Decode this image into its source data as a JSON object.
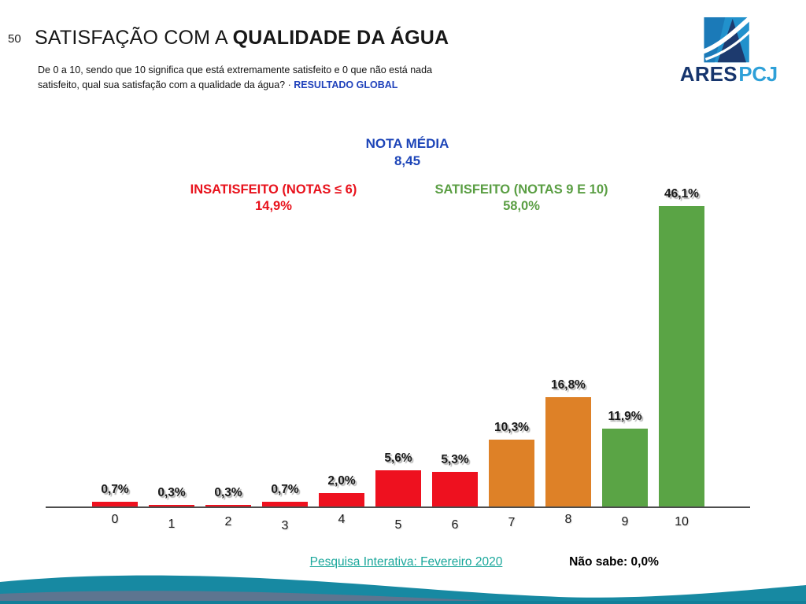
{
  "slide": {
    "number": "50"
  },
  "header": {
    "title_regular": "SATISFAÇÃO COM A ",
    "title_bold": "QUALIDADE DA ÁGUA",
    "subtitle_line1": "De 0 a 10, sendo que 10 significa que está extremamente satisfeito e 0 que não está nada",
    "subtitle_line2": "satisfeito, qual sua satisfação com a qualidade da água? ·",
    "subtitle_highlight": "RESULTADO GLOBAL"
  },
  "logo": {
    "text_dark": "ARES",
    "text_light": "PCJ"
  },
  "annotations": {
    "nota_media_label": "NOTA MÉDIA",
    "nota_media_value": "8,45",
    "insatisfeito_label": "INSATISFEITO (NOTAS ≤ 6)",
    "insatisfeito_value": "14,9%",
    "satisfeito_label": "SATISFEITO (NOTAS 9 E 10)",
    "satisfeito_value": "58,0%"
  },
  "chart_data": {
    "type": "bar",
    "title": "SATISFAÇÃO COM A QUALIDADE DA ÁGUA — RESULTADO GLOBAL",
    "categories": [
      "0",
      "1",
      "2",
      "3",
      "4",
      "5",
      "6",
      "7",
      "8",
      "9",
      "10"
    ],
    "values": [
      0.7,
      0.3,
      0.3,
      0.7,
      2.0,
      5.6,
      5.3,
      10.3,
      16.8,
      11.9,
      46.1
    ],
    "labels": [
      "0,7%",
      "0,3%",
      "0,3%",
      "0,7%",
      "2,0%",
      "5,6%",
      "5,3%",
      "10,3%",
      "16,8%",
      "11,9%",
      "46,1%"
    ],
    "groups": [
      "red",
      "red",
      "red",
      "red",
      "red",
      "red",
      "red",
      "orange",
      "orange",
      "green",
      "green"
    ],
    "group_colors": {
      "red": "#ee111f",
      "orange": "#de8127",
      "green": "#5aa445"
    },
    "group_meaning": {
      "red": "insatisfeito (notas 0-6)",
      "orange": "notas 7-8",
      "green": "satisfeito (notas 9-10)"
    },
    "xlabel": "",
    "ylabel": "",
    "ylim": [
      0,
      50
    ],
    "grid": false,
    "legend": false,
    "value_suffix": "%"
  },
  "footer": {
    "link": "Pesquisa Interativa: Fevereiro 2020",
    "nao_sabe": "Não sabe: 0,0%"
  },
  "colors": {
    "bar_red": "#ee111f",
    "bar_orange": "#de8127",
    "bar_green": "#5aa445",
    "annotation_blue": "#1d45b8",
    "highlight_blue": "#1f41bb",
    "link_teal": "#1aa79b",
    "wave_teal": "#1789a2",
    "wave_slate": "#5d7590"
  }
}
